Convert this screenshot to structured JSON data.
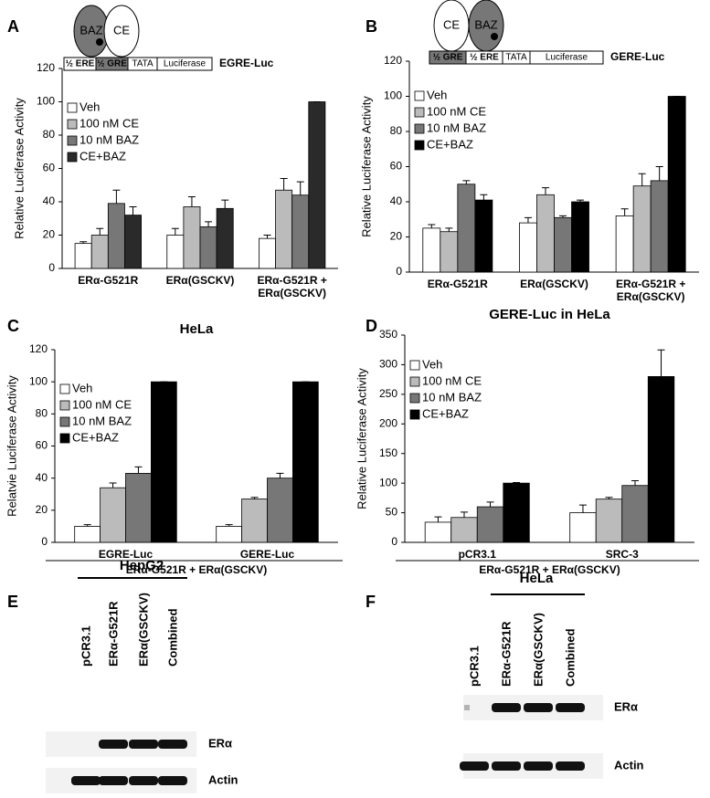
{
  "panel_letters": [
    "A",
    "B",
    "C",
    "D",
    "E",
    "F"
  ],
  "diagrams": [
    {
      "ovals": [
        "BAZ",
        "CE"
      ],
      "segments": [
        "½ ERE",
        "½ GRE",
        "TATA",
        "Luciferase"
      ],
      "construct": "EGRE-Luc"
    },
    {
      "ovals": [
        "CE",
        "BAZ"
      ],
      "segments": [
        "½ GRE",
        "½ ERE",
        "TATA",
        "Luciferase"
      ],
      "construct": "GERE-Luc"
    }
  ],
  "chart_data": [
    {
      "type": "bar",
      "ylabel": "Relative Luciferase Activity",
      "categories": [
        "ERα-G521R",
        "ERα(GSCKV)",
        "ERα-G521R + ERα(GSCKV)"
      ],
      "ylim": [
        0,
        120
      ],
      "yticks": [
        0,
        20,
        40,
        60,
        80,
        100,
        120
      ],
      "legend": "upper left",
      "series": [
        {
          "name": "Veh",
          "color": "#ffffff",
          "values": [
            15,
            20,
            18
          ],
          "errors": [
            1,
            4,
            2
          ]
        },
        {
          "name": "100 nM CE",
          "color": "#bbbbbb",
          "values": [
            20,
            37,
            47
          ],
          "errors": [
            4,
            6,
            7
          ]
        },
        {
          "name": "10 nM BAZ",
          "color": "#777777",
          "values": [
            39,
            25,
            44
          ],
          "errors": [
            8,
            3,
            8
          ]
        },
        {
          "name": "CE+BAZ",
          "color": "#2a2a2a",
          "values": [
            32,
            36,
            100
          ],
          "errors": [
            5,
            5,
            0
          ]
        }
      ]
    },
    {
      "type": "bar",
      "ylabel": "Relative Luciferase Activity",
      "categories": [
        "ERα-G521R",
        "ERα(GSCKV)",
        "ERα-G521R + ERα(GSCKV)"
      ],
      "ylim": [
        0,
        120
      ],
      "yticks": [
        0,
        20,
        40,
        60,
        80,
        100,
        120
      ],
      "legend": "upper left",
      "series": [
        {
          "name": "Veh",
          "color": "#ffffff",
          "values": [
            25,
            28,
            32
          ],
          "errors": [
            2,
            3,
            4
          ]
        },
        {
          "name": "100 nM CE",
          "color": "#bbbbbb",
          "values": [
            23,
            44,
            49
          ],
          "errors": [
            2,
            4,
            7
          ]
        },
        {
          "name": "10 nM BAZ",
          "color": "#777777",
          "values": [
            50,
            31,
            52
          ],
          "errors": [
            2,
            1,
            8
          ]
        },
        {
          "name": "CE+BAZ",
          "color": "#000000",
          "values": [
            41,
            40,
            100
          ],
          "errors": [
            3,
            1,
            0
          ]
        }
      ]
    },
    {
      "type": "bar",
      "title": "HeLa",
      "ylabel": "Relatvie Luciferase Activity",
      "xlabel": "ERα-G521R + ERα(GSCKV)",
      "categories": [
        "EGRE-Luc",
        "GERE-Luc"
      ],
      "ylim": [
        0,
        120
      ],
      "yticks": [
        0,
        20,
        40,
        60,
        80,
        100,
        120
      ],
      "legend": "upper left",
      "series": [
        {
          "name": "Veh",
          "color": "#ffffff",
          "values": [
            10,
            10
          ],
          "errors": [
            1,
            1
          ]
        },
        {
          "name": "100 nM CE",
          "color": "#bbbbbb",
          "values": [
            34,
            27
          ],
          "errors": [
            3,
            1
          ]
        },
        {
          "name": "10 nM BAZ",
          "color": "#777777",
          "values": [
            43,
            40
          ],
          "errors": [
            4,
            3
          ]
        },
        {
          "name": "CE+BAZ",
          "color": "#000000",
          "values": [
            100,
            100
          ],
          "errors": [
            0,
            0
          ]
        }
      ]
    },
    {
      "type": "bar",
      "title": "GERE-Luc in HeLa",
      "ylabel": "Relative Luciferase Activity",
      "xlabel": "ERα-G521R + ERα(GSCKV)",
      "categories": [
        "pCR3.1",
        "SRC-3"
      ],
      "ylim": [
        0,
        350
      ],
      "yticks": [
        0,
        50,
        100,
        150,
        200,
        250,
        300,
        350
      ],
      "legend": "upper left",
      "series": [
        {
          "name": "Veh",
          "color": "#ffffff",
          "values": [
            34,
            50
          ],
          "errors": [
            9,
            13
          ]
        },
        {
          "name": "100 nM CE",
          "color": "#bbbbbb",
          "values": [
            42,
            73
          ],
          "errors": [
            9,
            3
          ]
        },
        {
          "name": "10 nM BAZ",
          "color": "#777777",
          "values": [
            60,
            96
          ],
          "errors": [
            8,
            8
          ]
        },
        {
          "name": "CE+BAZ",
          "color": "#000000",
          "values": [
            100,
            280
          ],
          "errors": [
            1,
            45
          ]
        }
      ]
    }
  ],
  "blots": [
    {
      "cell_line": "HepG2",
      "lanes": [
        "pCR3.1",
        "ERα-G521R",
        "ERα(GSCKV)",
        "Combined"
      ],
      "bands": [
        "ERα",
        "Actin"
      ]
    },
    {
      "cell_line": "HeLa",
      "lanes": [
        "pCR3.1",
        "ERα-G521R",
        "ERα(GSCKV)",
        "Combined"
      ],
      "bands": [
        "ERα",
        "Actin"
      ]
    }
  ]
}
